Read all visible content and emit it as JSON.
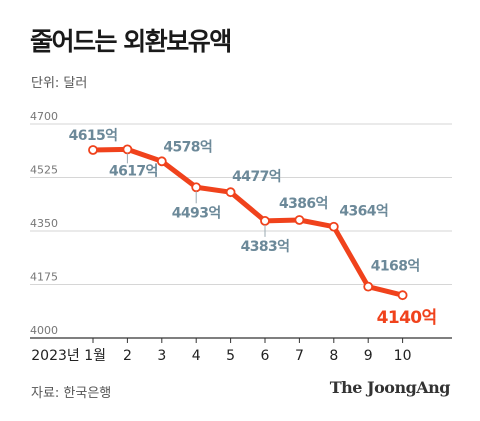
{
  "title": "줄어드는 외환보유액",
  "unit": "단위: 달러",
  "source": "자료: 한국은행",
  "logo": "The JoongAng",
  "colors": {
    "line": "#f0421c",
    "label": "#6c8999",
    "highlight": "#f0421c",
    "grid": "#c8c8c8"
  },
  "chart_data": {
    "type": "line",
    "title": "줄어드는 외환보유액",
    "ylabel": "단위: 달러",
    "xlabel": "",
    "categories": [
      "2023년 1월",
      "2",
      "3",
      "4",
      "5",
      "6",
      "7",
      "8",
      "9",
      "10"
    ],
    "values": [
      4615,
      4617,
      4578,
      4493,
      4477,
      4383,
      4386,
      4364,
      4168,
      4140
    ],
    "data_labels": [
      "4615억",
      "4617억",
      "4578억",
      "4493억",
      "4477억",
      "4383억",
      "4386억",
      "4364억",
      "4168억",
      "4140억"
    ],
    "yticks": [
      4000,
      4175,
      4350,
      4525,
      4700
    ],
    "ylim": [
      4000,
      4700
    ],
    "grid": true,
    "legend": "none"
  }
}
